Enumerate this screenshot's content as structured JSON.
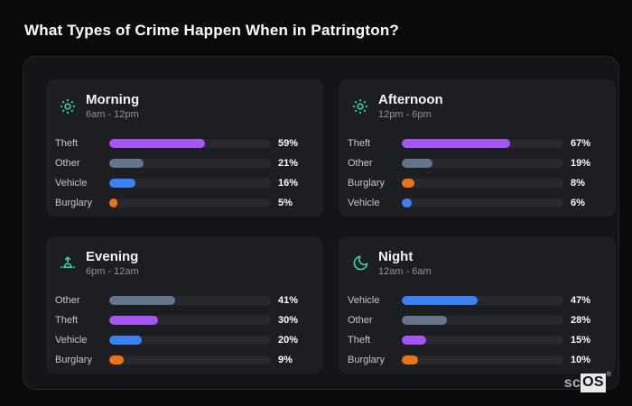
{
  "page": {
    "title": "What Types of Crime Happen When in Patrington?"
  },
  "brand": {
    "prefix": "sc",
    "suffix": "OS",
    "mark": "®"
  },
  "colors": {
    "background": "#0a0a0c",
    "panel": "#141518",
    "card": "#1d1e22",
    "bar_track": "#27292e",
    "icon_accent": "#2dd4a8",
    "theft": "#a855f7",
    "other": "#64748b",
    "vehicle": "#3b82f6",
    "burglary": "#ea7317"
  },
  "chart_data": {
    "type": "bar",
    "title": "What Types of Crime Happen When in Patrington?",
    "value_format": "percent",
    "xlim": [
      0,
      100
    ],
    "panels": [
      {
        "title": "Morning",
        "time_range": "6am - 12pm",
        "icon": "sun-icon",
        "bars": [
          {
            "label": "Theft",
            "value": 59,
            "percent": "59%",
            "color": "#a855f7"
          },
          {
            "label": "Other",
            "value": 21,
            "percent": "21%",
            "color": "#64748b"
          },
          {
            "label": "Vehicle",
            "value": 16,
            "percent": "16%",
            "color": "#3b82f6"
          },
          {
            "label": "Burglary",
            "value": 5,
            "percent": "5%",
            "color": "#ea7317"
          }
        ]
      },
      {
        "title": "Afternoon",
        "time_range": "12pm - 6pm",
        "icon": "sun-icon",
        "bars": [
          {
            "label": "Theft",
            "value": 67,
            "percent": "67%",
            "color": "#a855f7"
          },
          {
            "label": "Other",
            "value": 19,
            "percent": "19%",
            "color": "#64748b"
          },
          {
            "label": "Burglary",
            "value": 8,
            "percent": "8%",
            "color": "#ea7317"
          },
          {
            "label": "Vehicle",
            "value": 6,
            "percent": "6%",
            "color": "#3b82f6"
          }
        ]
      },
      {
        "title": "Evening",
        "time_range": "6pm - 12am",
        "icon": "sunrise-icon",
        "bars": [
          {
            "label": "Other",
            "value": 41,
            "percent": "41%",
            "color": "#64748b"
          },
          {
            "label": "Theft",
            "value": 30,
            "percent": "30%",
            "color": "#a855f7"
          },
          {
            "label": "Vehicle",
            "value": 20,
            "percent": "20%",
            "color": "#3b82f6"
          },
          {
            "label": "Burglary",
            "value": 9,
            "percent": "9%",
            "color": "#ea7317"
          }
        ]
      },
      {
        "title": "Night",
        "time_range": "12am - 6am",
        "icon": "moon-icon",
        "bars": [
          {
            "label": "Vehicle",
            "value": 47,
            "percent": "47%",
            "color": "#3b82f6"
          },
          {
            "label": "Other",
            "value": 28,
            "percent": "28%",
            "color": "#64748b"
          },
          {
            "label": "Theft",
            "value": 15,
            "percent": "15%",
            "color": "#a855f7"
          },
          {
            "label": "Burglary",
            "value": 10,
            "percent": "10%",
            "color": "#ea7317"
          }
        ]
      }
    ]
  }
}
